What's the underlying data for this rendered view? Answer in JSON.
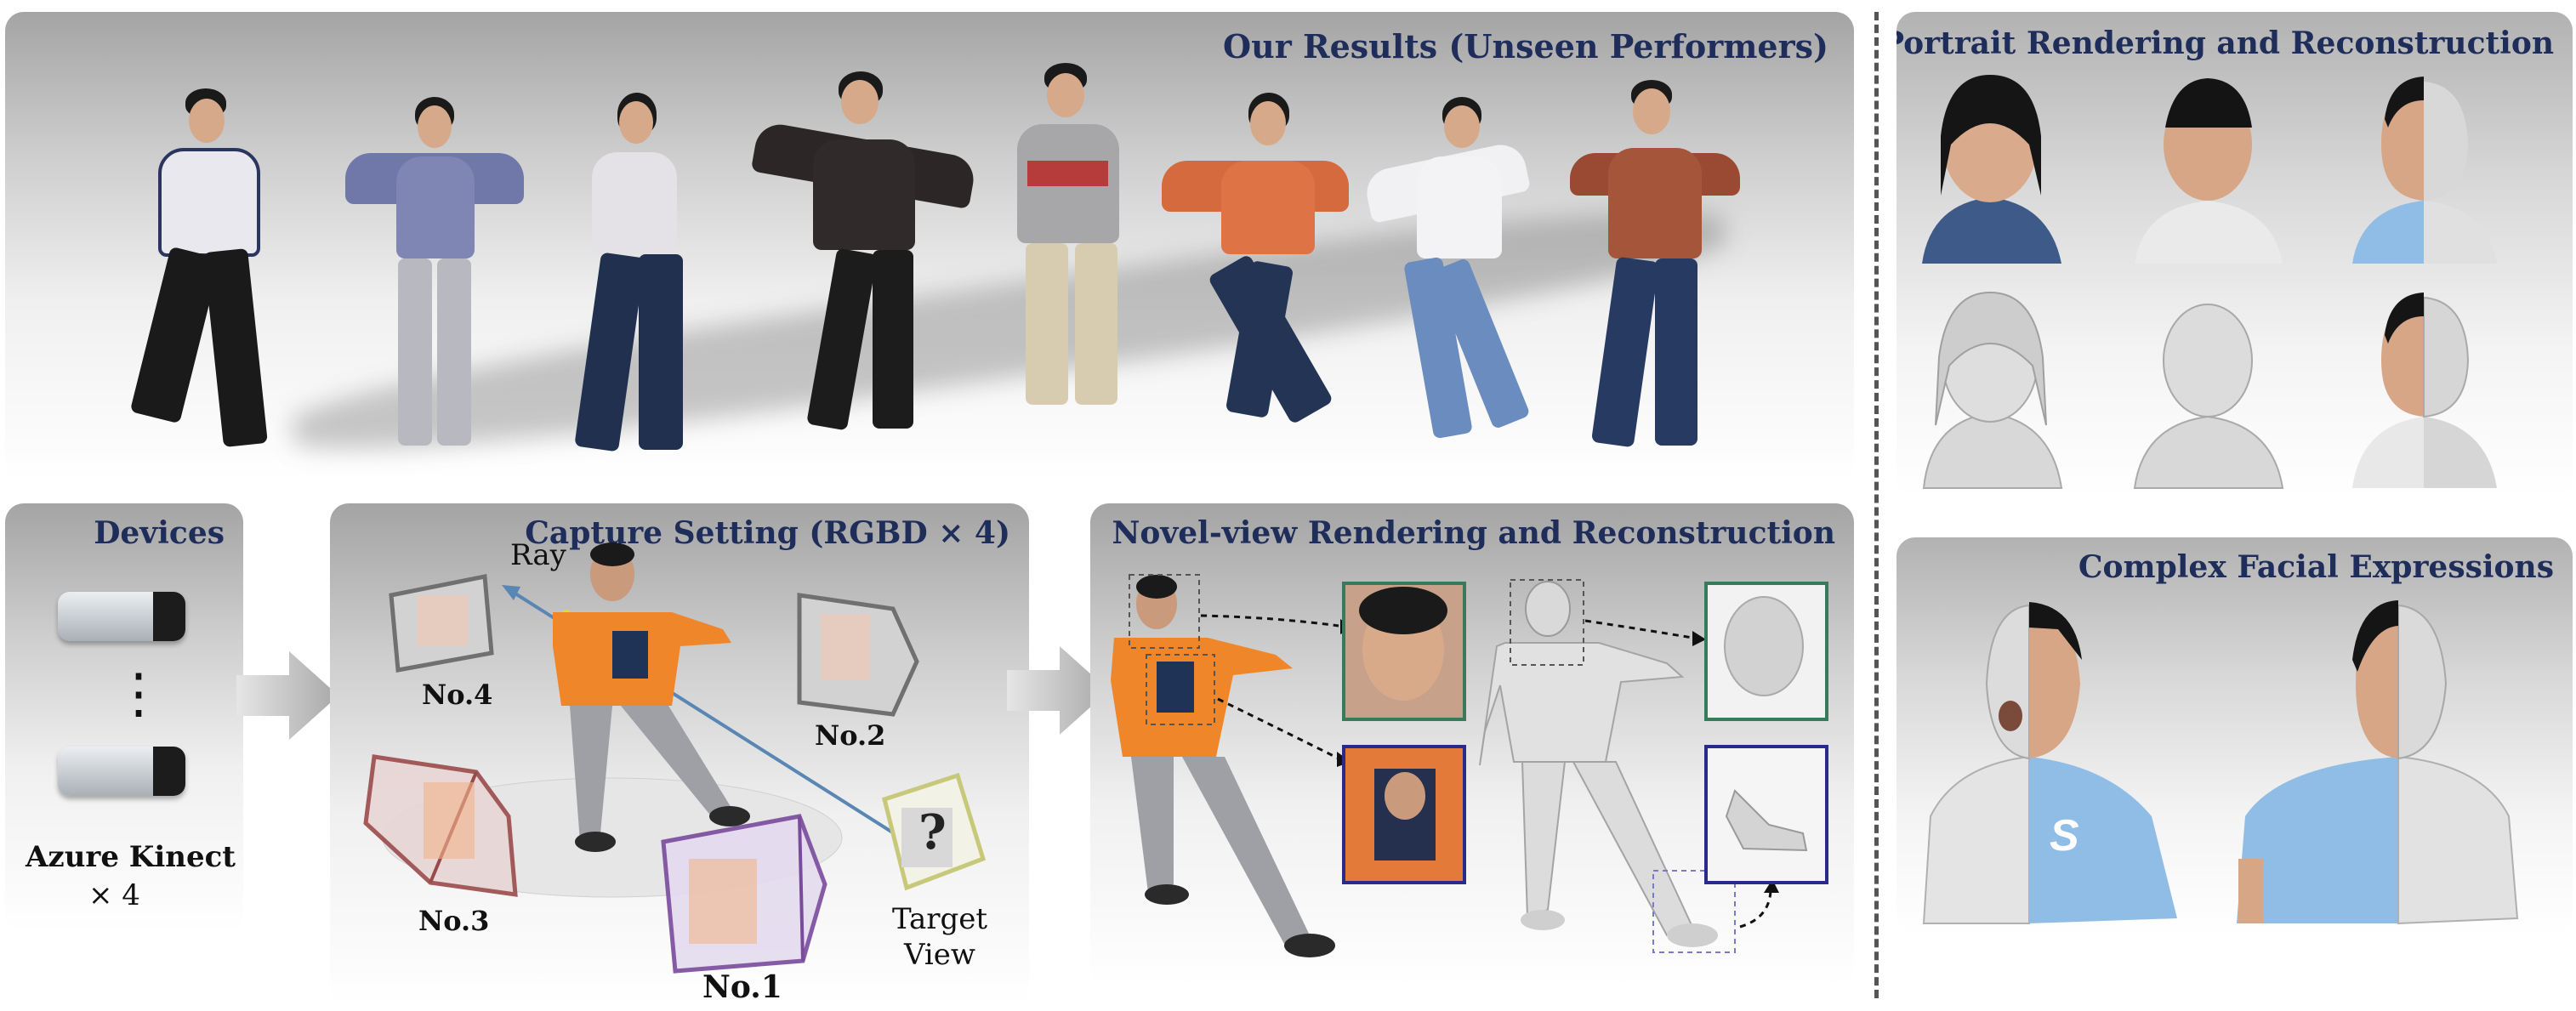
{
  "panels": {
    "results_title": "Our Results (Unseen Performers)",
    "devices_title": "Devices",
    "capture_title": "Capture Setting (RGBD × 4)",
    "novel_title": "Novel-view Rendering and Reconstruction",
    "portrait_title": "Portrait Rendering and Reconstruction",
    "facial_title": "Complex Facial Expressions"
  },
  "devices": {
    "name": "Azure Kinect",
    "count": "× 4",
    "ellipsis": "⋮"
  },
  "capture": {
    "ray_label": "Ray",
    "cameras": [
      "No.4",
      "No.2",
      "No.3",
      "No.1"
    ],
    "target_label": "Target",
    "target_label2": "View",
    "question_mark": "?"
  },
  "colors": {
    "title_navy": "#1f2d5a",
    "cam1": "#7a4a9c",
    "cam3": "#9a4a4a",
    "target": "#c8c87a",
    "inset_green": "#3a7a5a",
    "inset_blue": "#2a2a8a"
  }
}
